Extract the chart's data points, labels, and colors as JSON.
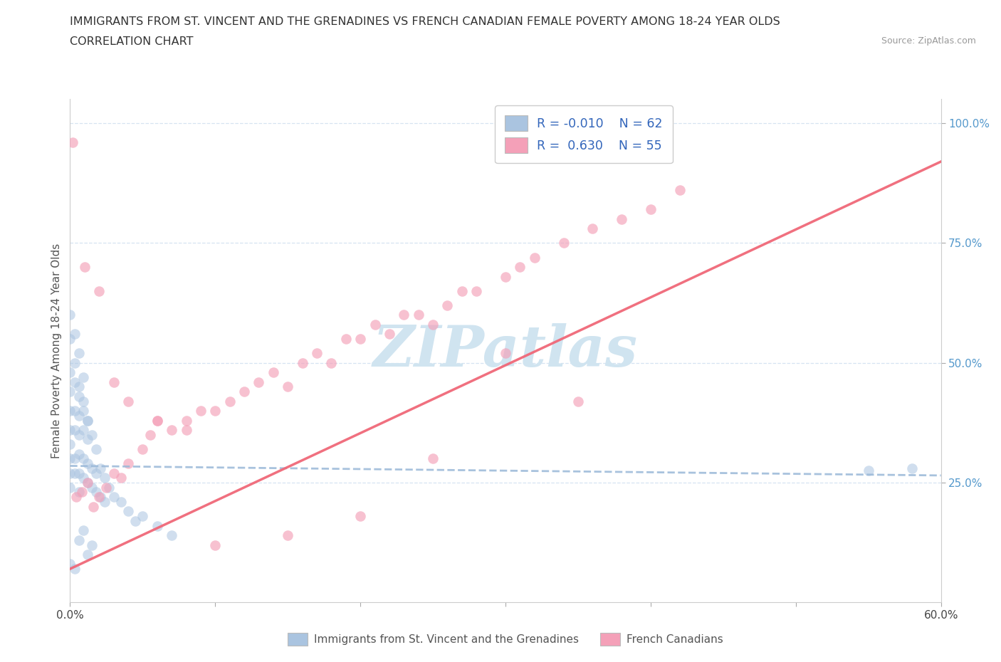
{
  "title_line1": "IMMIGRANTS FROM ST. VINCENT AND THE GRENADINES VS FRENCH CANADIAN FEMALE POVERTY AMONG 18-24 YEAR OLDS",
  "title_line2": "CORRELATION CHART",
  "source_text": "Source: ZipAtlas.com",
  "ylabel": "Female Poverty Among 18-24 Year Olds",
  "xlim": [
    0.0,
    0.6
  ],
  "ylim": [
    0.0,
    1.05
  ],
  "blue_color": "#aac4e0",
  "pink_color": "#f4a0b8",
  "trendline_blue_color": "#99b8d8",
  "trendline_pink_color": "#f06878",
  "watermark_color": "#d0e4f0",
  "background_color": "#ffffff",
  "blue_x": [
    0.0,
    0.0,
    0.0,
    0.0,
    0.0,
    0.0,
    0.0,
    0.0,
    0.003,
    0.003,
    0.003,
    0.003,
    0.003,
    0.006,
    0.006,
    0.006,
    0.006,
    0.006,
    0.006,
    0.009,
    0.009,
    0.009,
    0.009,
    0.012,
    0.012,
    0.012,
    0.012,
    0.015,
    0.015,
    0.015,
    0.018,
    0.018,
    0.018,
    0.021,
    0.021,
    0.024,
    0.024,
    0.027,
    0.03,
    0.035,
    0.04,
    0.045,
    0.05,
    0.06,
    0.07,
    0.0,
    0.003,
    0.006,
    0.009,
    0.012,
    0.015,
    0.0,
    0.003,
    0.006,
    0.009,
    0.012,
    0.0,
    0.003,
    0.006,
    0.009,
    0.55,
    0.58
  ],
  "blue_y": [
    0.48,
    0.44,
    0.4,
    0.36,
    0.33,
    0.3,
    0.27,
    0.24,
    0.46,
    0.4,
    0.36,
    0.3,
    0.27,
    0.43,
    0.39,
    0.35,
    0.31,
    0.27,
    0.23,
    0.4,
    0.36,
    0.3,
    0.26,
    0.38,
    0.34,
    0.29,
    0.25,
    0.35,
    0.28,
    0.24,
    0.32,
    0.27,
    0.23,
    0.28,
    0.22,
    0.26,
    0.21,
    0.24,
    0.22,
    0.21,
    0.19,
    0.17,
    0.18,
    0.16,
    0.14,
    0.55,
    0.5,
    0.45,
    0.42,
    0.38,
    0.12,
    0.6,
    0.56,
    0.52,
    0.47,
    0.1,
    0.08,
    0.07,
    0.13,
    0.15,
    0.275,
    0.28
  ],
  "pink_x": [
    0.002,
    0.004,
    0.008,
    0.012,
    0.016,
    0.02,
    0.025,
    0.03,
    0.035,
    0.04,
    0.05,
    0.055,
    0.06,
    0.07,
    0.08,
    0.09,
    0.1,
    0.11,
    0.12,
    0.13,
    0.14,
    0.15,
    0.16,
    0.17,
    0.18,
    0.19,
    0.2,
    0.21,
    0.22,
    0.23,
    0.24,
    0.25,
    0.26,
    0.27,
    0.28,
    0.3,
    0.31,
    0.32,
    0.34,
    0.36,
    0.38,
    0.4,
    0.01,
    0.02,
    0.03,
    0.04,
    0.06,
    0.08,
    0.1,
    0.15,
    0.2,
    0.25,
    0.3,
    0.35,
    0.42
  ],
  "pink_y": [
    0.96,
    0.22,
    0.23,
    0.25,
    0.2,
    0.22,
    0.24,
    0.27,
    0.26,
    0.29,
    0.32,
    0.35,
    0.38,
    0.36,
    0.38,
    0.4,
    0.4,
    0.42,
    0.44,
    0.46,
    0.48,
    0.45,
    0.5,
    0.52,
    0.5,
    0.55,
    0.55,
    0.58,
    0.56,
    0.6,
    0.6,
    0.58,
    0.62,
    0.65,
    0.65,
    0.68,
    0.7,
    0.72,
    0.75,
    0.78,
    0.8,
    0.82,
    0.7,
    0.65,
    0.46,
    0.42,
    0.38,
    0.36,
    0.12,
    0.14,
    0.18,
    0.3,
    0.52,
    0.42,
    0.86
  ],
  "blue_trend_x": [
    0.0,
    0.6
  ],
  "blue_trend_y": [
    0.285,
    0.265
  ],
  "pink_trend_x": [
    0.0,
    0.6
  ],
  "pink_trend_y": [
    0.07,
    0.92
  ]
}
